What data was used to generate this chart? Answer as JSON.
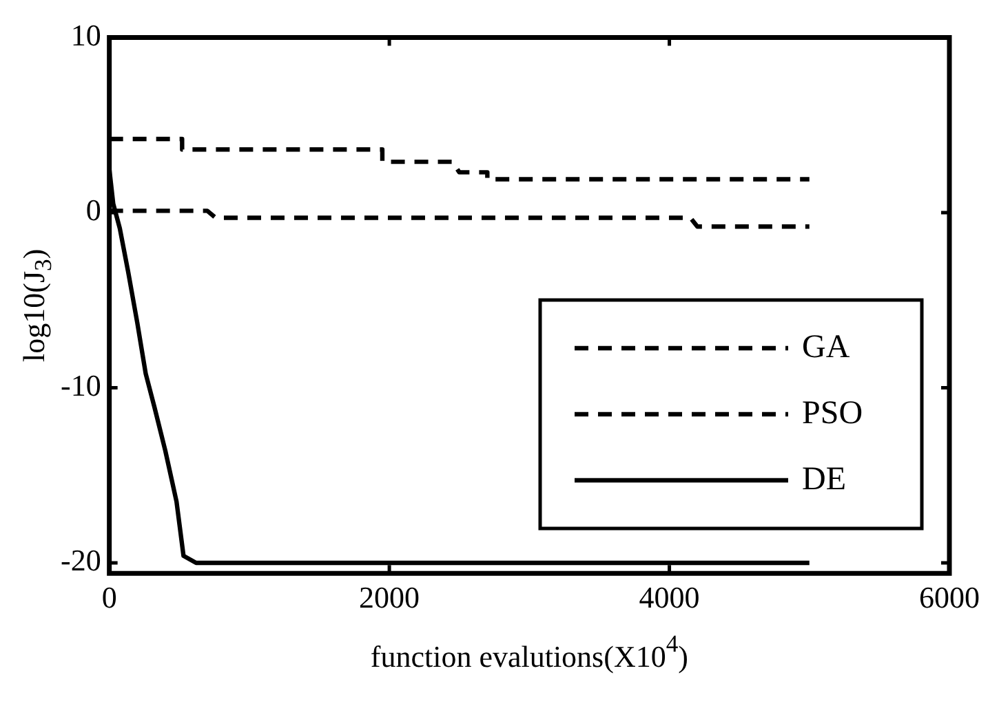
{
  "chart_data": {
    "type": "line",
    "xlabel": "function evalutions(X10$^{4}$)",
    "ylabel": "log10(J$_{3}$)",
    "xlim": [
      0,
      6000
    ],
    "xticks": [
      0,
      2000,
      4000,
      6000
    ],
    "ylim": [
      -20.6,
      10
    ],
    "yticks": [
      -20,
      -10,
      0,
      10
    ],
    "grid": false,
    "legend": "right",
    "marker": "none",
    "series": [
      {
        "name": "GA",
        "color": "#000000",
        "line_style": "dashed",
        "x": [
          0,
          520,
          520,
          1950,
          1950,
          2450,
          2500,
          2700,
          2700,
          5000
        ],
        "values": [
          4.2,
          4.2,
          3.6,
          3.6,
          2.9,
          2.9,
          2.3,
          2.3,
          1.9,
          1.9
        ]
      },
      {
        "name": "PSO",
        "color": "#000000",
        "line_style": "dashed",
        "x": [
          0,
          700,
          760,
          4150,
          4200,
          5000
        ],
        "values": [
          0.1,
          0.1,
          -0.3,
          -0.3,
          -0.8,
          -0.8
        ]
      },
      {
        "name": "DE",
        "color": "#000000",
        "line_style": "solid",
        "x": [
          0,
          28,
          75,
          135,
          200,
          260,
          322,
          400,
          480,
          530,
          620,
          5000
        ],
        "values": [
          2.5,
          0.5,
          -0.9,
          -3.4,
          -6.3,
          -9.2,
          -11.1,
          -13.6,
          -16.5,
          -19.6,
          -20,
          -20
        ]
      }
    ]
  }
}
